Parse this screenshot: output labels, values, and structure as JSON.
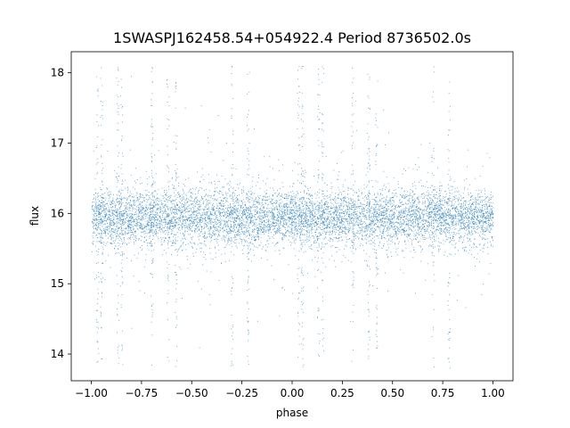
{
  "chart_data": {
    "type": "scatter",
    "title": "1SWASPJ162458.54+054922.4 Period 8736502.0s",
    "xlabel": "phase",
    "ylabel": "flux",
    "xlim": [
      -1.1,
      1.1
    ],
    "ylim": [
      13.62,
      18.3
    ],
    "x_ticks": [
      -1.0,
      -0.75,
      -0.5,
      -0.25,
      0.0,
      0.25,
      0.5,
      0.75,
      1.0
    ],
    "x_tick_labels": [
      "−1.00",
      "−0.75",
      "−0.50",
      "−0.25",
      "0.00",
      "0.25",
      "0.50",
      "0.75",
      "1.00"
    ],
    "y_ticks": [
      14,
      15,
      16,
      17,
      18
    ],
    "y_tick_labels": [
      "14",
      "15",
      "16",
      "17",
      "18"
    ],
    "grid": false,
    "legend": "none",
    "marker_color": "#1f77b4",
    "series": [
      {
        "x_range": [
          -1.0,
          1.0
        ],
        "baseline_flux": 15.95,
        "core_spread": [
          15.55,
          16.35
        ],
        "outlier_range": [
          13.8,
          18.1
        ],
        "point_count_approx": 40000,
        "folded_twice": true
      }
    ]
  }
}
